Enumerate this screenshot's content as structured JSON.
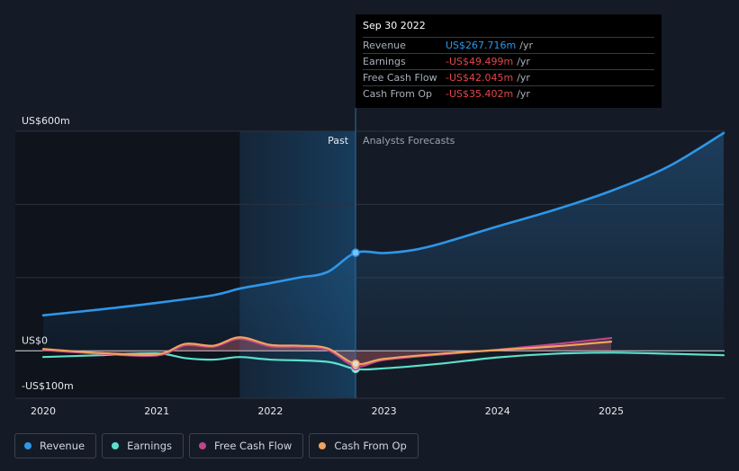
{
  "tooltip": {
    "date": "Sep 30 2022",
    "rows": [
      {
        "label": "Revenue",
        "value": "US$267.716m",
        "unit": "/yr"
      },
      {
        "label": "Earnings",
        "value": "-US$49.499m",
        "unit": "/yr"
      },
      {
        "label": "Free Cash Flow",
        "value": "-US$42.045m",
        "unit": "/yr"
      },
      {
        "label": "Cash From Op",
        "value": "-US$35.402m",
        "unit": "/yr"
      }
    ]
  },
  "legend": [
    {
      "label": "Revenue",
      "color": "#2f96e8"
    },
    {
      "label": "Earnings",
      "color": "#5ce0cb"
    },
    {
      "label": "Free Cash Flow",
      "color": "#c1458a"
    },
    {
      "label": "Cash From Op",
      "color": "#f0a45d"
    }
  ],
  "chart_data": {
    "type": "line",
    "y_unit": "US$m",
    "ylim": [
      -100,
      600
    ],
    "y_tick_labels": [
      {
        "value": 600,
        "label": "US$600m"
      },
      {
        "value": 0,
        "label": "US$0"
      },
      {
        "value": -100,
        "label": "-US$100m"
      }
    ],
    "x_ticks": [
      "2020",
      "2021",
      "2022",
      "2023",
      "2024",
      "2025"
    ],
    "xlim": [
      2019.75,
      2025.99
    ],
    "past_label": "Past",
    "forecast_label": "Analysts Forecasts",
    "highlight_range": [
      2021.73,
      2022.75
    ],
    "divider_x": 2022.75,
    "marker_x": 2022.75,
    "series": [
      {
        "name": "Revenue",
        "color": "#2f96e8",
        "points": [
          [
            2020,
            97
          ],
          [
            2020.5,
            113
          ],
          [
            2021,
            131
          ],
          [
            2021.5,
            152
          ],
          [
            2021.73,
            170
          ],
          [
            2022,
            185
          ],
          [
            2022.25,
            200
          ],
          [
            2022.5,
            215
          ],
          [
            2022.75,
            268
          ],
          [
            2023,
            267
          ],
          [
            2023.25,
            275
          ],
          [
            2023.5,
            293
          ],
          [
            2024,
            340
          ],
          [
            2024.5,
            385
          ],
          [
            2025,
            437
          ],
          [
            2025.5,
            503
          ],
          [
            2025.99,
            595
          ]
        ]
      },
      {
        "name": "Earnings",
        "color": "#5ce0cb",
        "points": [
          [
            2020,
            -17
          ],
          [
            2020.5,
            -12
          ],
          [
            2021,
            -7
          ],
          [
            2021.25,
            -20
          ],
          [
            2021.5,
            -24
          ],
          [
            2021.73,
            -17
          ],
          [
            2022,
            -24
          ],
          [
            2022.5,
            -30
          ],
          [
            2022.75,
            -49.5
          ],
          [
            2023,
            -48
          ],
          [
            2023.5,
            -35
          ],
          [
            2024,
            -18
          ],
          [
            2024.5,
            -8
          ],
          [
            2025,
            -5
          ],
          [
            2025.5,
            -8
          ],
          [
            2025.99,
            -12
          ]
        ]
      },
      {
        "name": "Free Cash Flow",
        "color": "#c1458a",
        "points": [
          [
            2020,
            2
          ],
          [
            2020.5,
            -8
          ],
          [
            2021,
            -13
          ],
          [
            2021.25,
            15
          ],
          [
            2021.5,
            11
          ],
          [
            2021.73,
            33
          ],
          [
            2022,
            12
          ],
          [
            2022.25,
            10
          ],
          [
            2022.5,
            3
          ],
          [
            2022.75,
            -42
          ],
          [
            2023,
            -25
          ],
          [
            2023.5,
            -10
          ],
          [
            2024,
            3
          ],
          [
            2024.5,
            18
          ],
          [
            2025,
            35
          ]
        ]
      },
      {
        "name": "Cash From Op",
        "color": "#f0a45d",
        "points": [
          [
            2020,
            5
          ],
          [
            2020.5,
            -6
          ],
          [
            2021,
            -10
          ],
          [
            2021.25,
            19
          ],
          [
            2021.5,
            14
          ],
          [
            2021.73,
            37
          ],
          [
            2022,
            16
          ],
          [
            2022.25,
            14
          ],
          [
            2022.5,
            7
          ],
          [
            2022.75,
            -35.4
          ],
          [
            2023,
            -22
          ],
          [
            2023.5,
            -8
          ],
          [
            2024,
            2
          ],
          [
            2024.5,
            12
          ],
          [
            2025,
            25
          ]
        ]
      }
    ]
  }
}
